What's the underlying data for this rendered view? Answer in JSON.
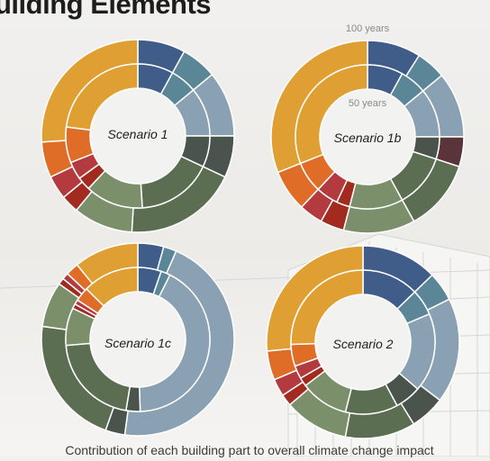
{
  "page": {
    "title": "uilding Elements",
    "caption": "Contribution of each building part  to overall climate change impact"
  },
  "chart_data": [
    {
      "type": "donut",
      "title": "Scenario 1",
      "rings": [
        {
          "name": "",
          "colors": [
            "#405c88",
            "#5a8697",
            "#8aa0b3",
            "#4a544c",
            "#5c6e52",
            "#7a8f6a",
            "#a22a1f",
            "#b33b3f",
            "#df6d28",
            "#e09f33"
          ],
          "values": [
            8,
            6,
            11,
            7,
            19,
            10,
            3,
            4,
            6,
            26
          ]
        },
        {
          "name": "",
          "colors": [
            "#405c88",
            "#5a8697",
            "#8aa0b3",
            "#4a544c",
            "#5c6e52",
            "#7a8f6a",
            "#a22a1f",
            "#b33b3f",
            "#df6d28",
            "#e09f33"
          ],
          "values": [
            8,
            6,
            11,
            7,
            17,
            13,
            3,
            4,
            8,
            23
          ]
        }
      ]
    },
    {
      "type": "donut",
      "title": "Scenario 1b",
      "ring_labels": [
        "100 years",
        "50 years"
      ],
      "rings": [
        {
          "name": "",
          "colors": [
            "#405c88",
            "#5a8697",
            "#8aa0b3",
            "#5b333b",
            "#4a544c",
            "#5c6e52",
            "#7a8f6a",
            "#a22a1f",
            "#b33b3f",
            "#df6d28",
            "#e09f33"
          ],
          "values": [
            9,
            5,
            11,
            5,
            0,
            12,
            12,
            4,
            4,
            7,
            31
          ]
        },
        {
          "name": "",
          "colors": [
            "#405c88",
            "#5a8697",
            "#8aa0b3",
            "#5b333b",
            "#4a544c",
            "#5c6e52",
            "#7a8f6a",
            "#a22a1f",
            "#b33b3f",
            "#df6d28",
            "#e09f33"
          ],
          "values": [
            8,
            6,
            11,
            0,
            5,
            12,
            12,
            3,
            5,
            7,
            31
          ]
        }
      ]
    },
    {
      "type": "donut",
      "title": "Scenario 1c",
      "rings": [
        {
          "name": "",
          "colors": [
            "#405c88",
            "#5a8697",
            "#8aa0b3",
            "#4a544c",
            "#5c6e52",
            "#7a8f6a",
            "#a22a1f",
            "#b33b3f",
            "#df6d28",
            "#e09f33"
          ],
          "values": [
            4,
            2,
            42,
            3,
            20,
            7,
            1,
            1,
            2,
            10
          ]
        },
        {
          "name": "",
          "colors": [
            "#405c88",
            "#5a8697",
            "#8aa0b3",
            "#4a544c",
            "#5c6e52",
            "#7a8f6a",
            "#a22a1f",
            "#b33b3f",
            "#df6d28",
            "#e09f33"
          ],
          "values": [
            5,
            2,
            40,
            3,
            20,
            8,
            1,
            1,
            3,
            12
          ]
        }
      ]
    },
    {
      "type": "donut",
      "title": "Scenario 2",
      "rings": [
        {
          "name": "",
          "colors": [
            "#405c88",
            "#5a8697",
            "#8aa0b3",
            "#4a544c",
            "#5c6e52",
            "#7a8f6a",
            "#a22a1f",
            "#b33b3f",
            "#df6d28",
            "#e09f33"
          ],
          "values": [
            13,
            5,
            18,
            6,
            12,
            11,
            2,
            3,
            5,
            27
          ]
        },
        {
          "name": "",
          "colors": [
            "#405c88",
            "#5a8697",
            "#8aa0b3",
            "#4a544c",
            "#5c6e52",
            "#7a8f6a",
            "#a22a1f",
            "#b33b3f",
            "#df6d28",
            "#e09f33"
          ],
          "values": [
            13,
            6,
            18,
            6,
            12,
            11,
            2,
            3,
            5,
            26
          ]
        }
      ]
    }
  ]
}
